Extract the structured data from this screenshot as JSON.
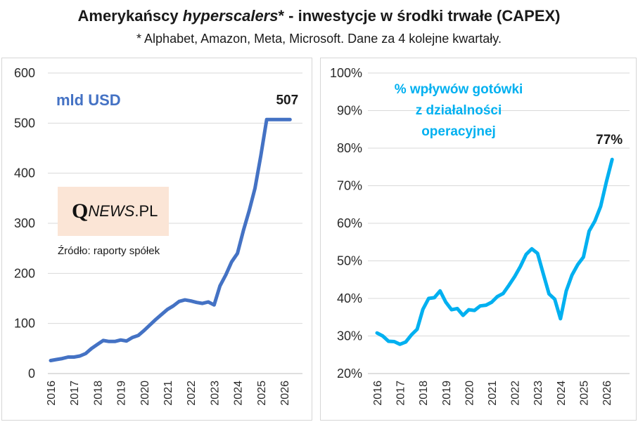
{
  "header": {
    "title_part1": "Amerykańscy ",
    "title_italic": "hyperscalers",
    "title_part2": "* - inwestycje w środki trwałe (CAPEX)",
    "subtitle": "* Alphabet, Amazon, Meta, Microsoft. Dane za 4 kolejne kwartały."
  },
  "logo": {
    "q": "Q",
    "news": "NEWS",
    "dot_pl": ".PL"
  },
  "source_note": "Źródło: raporty spółek",
  "colors": {
    "left_line": "#4472c4",
    "right_line": "#00b0f0",
    "grid": "#d9d9d9"
  },
  "chart_data": [
    {
      "type": "line",
      "unit_label": "mld USD",
      "x_ticks": [
        "2016",
        "2017",
        "2018",
        "2019",
        "2020",
        "2021",
        "2022",
        "2023",
        "2024",
        "2025",
        "2026"
      ],
      "y_ticks": [
        "0",
        "100",
        "200",
        "300",
        "400",
        "500",
        "600"
      ],
      "ylim": [
        0,
        600
      ],
      "grid": true,
      "end_label": "507",
      "series": [
        {
          "x": [
            2016.0,
            2016.25,
            2016.5,
            2016.75,
            2017.0,
            2017.25,
            2017.5,
            2017.75,
            2018.0,
            2018.25,
            2018.5,
            2018.75,
            2019.0,
            2019.25,
            2019.5,
            2019.75,
            2020.0,
            2020.25,
            2020.5,
            2020.75,
            2021.0,
            2021.25,
            2021.5,
            2021.75,
            2022.0,
            2022.25,
            2022.5,
            2022.75,
            2023.0,
            2023.25,
            2023.5,
            2023.75,
            2024.0,
            2024.25,
            2024.5,
            2024.75,
            2025.0,
            2025.25,
            2025.5,
            2025.75,
            2026.0,
            2026.25
          ],
          "values": [
            26,
            28,
            30,
            33,
            33,
            35,
            40,
            50,
            58,
            66,
            64,
            64,
            67,
            65,
            72,
            76,
            86,
            97,
            108,
            118,
            128,
            135,
            144,
            147,
            145,
            142,
            140,
            143,
            137,
            175,
            197,
            223,
            240,
            285,
            325,
            370,
            435,
            507,
            507,
            507,
            507,
            507
          ]
        }
      ]
    },
    {
      "type": "line",
      "unit_label": "% wpływów gotówki z działalności operacyjnej",
      "x_ticks": [
        "2016",
        "2017",
        "2018",
        "2019",
        "2020",
        "2021",
        "2022",
        "2023",
        "2024",
        "2025",
        "2026"
      ],
      "y_ticks": [
        "20%",
        "30%",
        "40%",
        "50%",
        "60%",
        "70%",
        "80%",
        "90%",
        "100%"
      ],
      "ylim": [
        20,
        100
      ],
      "grid": true,
      "end_label": "77%",
      "series": [
        {
          "x": [
            2016.0,
            2016.25,
            2016.5,
            2016.75,
            2017.0,
            2017.25,
            2017.5,
            2017.75,
            2018.0,
            2018.25,
            2018.5,
            2018.75,
            2019.0,
            2019.25,
            2019.5,
            2019.75,
            2020.0,
            2020.25,
            2020.5,
            2020.75,
            2021.0,
            2021.25,
            2021.5,
            2021.75,
            2022.0,
            2022.25,
            2022.5,
            2022.75,
            2023.0,
            2023.25,
            2023.5,
            2023.75,
            2024.0,
            2024.25,
            2024.5,
            2024.75,
            2025.0,
            2025.25,
            2025.5,
            2025.75,
            2026.0,
            2026.25
          ],
          "values": [
            30.8,
            30.0,
            28.6,
            28.5,
            27.8,
            28.4,
            30.3,
            31.8,
            37.1,
            40.0,
            40.2,
            42.0,
            39.0,
            37.0,
            37.3,
            35.5,
            37.0,
            36.8,
            38.0,
            38.2,
            39.0,
            40.5,
            41.3,
            43.5,
            45.8,
            48.5,
            51.7,
            53.2,
            52.0,
            46.5,
            41.2,
            39.8,
            34.6,
            42.0,
            46.2,
            49.0,
            51.0,
            57.9,
            60.6,
            64.5,
            71.0,
            77.0
          ]
        }
      ]
    }
  ]
}
